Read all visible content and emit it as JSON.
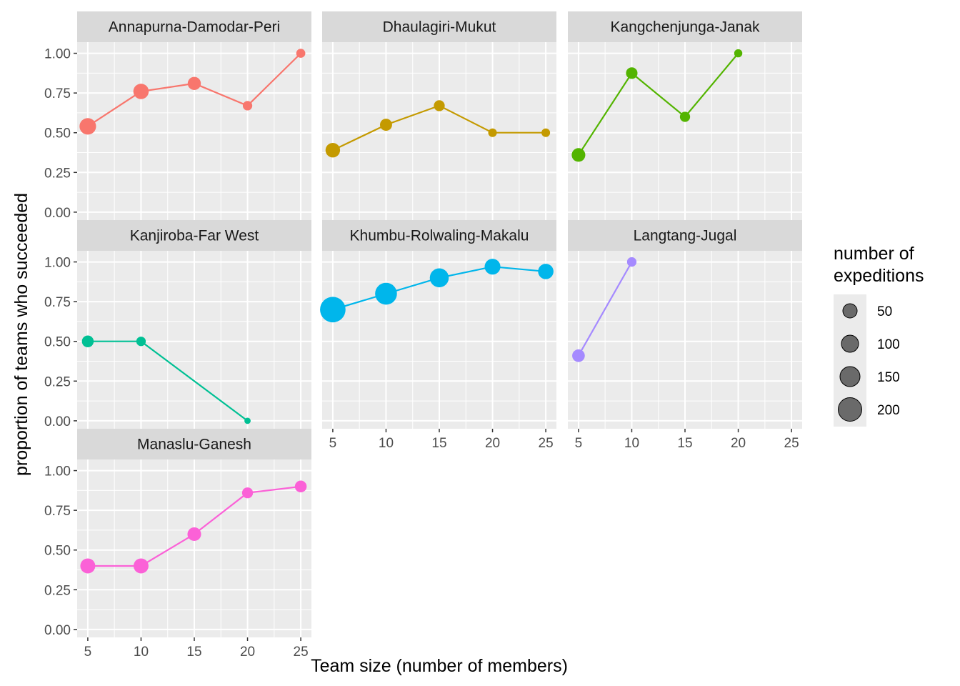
{
  "chart_data": {
    "type": "line",
    "facet_layout": "wrap",
    "xlabel": "Team size (number of members)",
    "ylabel": "proportion of teams who succeeded",
    "x_ticks": [
      5,
      10,
      15,
      20,
      25
    ],
    "y_ticks": [
      "0.00",
      "0.25",
      "0.50",
      "0.75",
      "1.00"
    ],
    "xlim": [
      4,
      26
    ],
    "ylim": [
      -0.05,
      1.07
    ],
    "grid": true,
    "legend": {
      "title_line1": "number of",
      "title_line2": "expeditions",
      "placement": "right",
      "entries": [
        {
          "label": "50",
          "value": 50
        },
        {
          "label": "100",
          "value": 100
        },
        {
          "label": "150",
          "value": 150
        },
        {
          "label": "200",
          "value": 200
        }
      ]
    },
    "panels": [
      {
        "name": "Annapurna-Damodar-Peri",
        "color": "#F8766D",
        "points": [
          {
            "x": 5,
            "y": 0.54,
            "n": 180
          },
          {
            "x": 10,
            "y": 0.76,
            "n": 150
          },
          {
            "x": 15,
            "y": 0.81,
            "n": 100
          },
          {
            "x": 20,
            "y": 0.67,
            "n": 40
          },
          {
            "x": 25,
            "y": 1.0,
            "n": 35
          }
        ]
      },
      {
        "name": "Dhaulagiri-Mukut",
        "color": "#C49A00",
        "points": [
          {
            "x": 5,
            "y": 0.39,
            "n": 130
          },
          {
            "x": 10,
            "y": 0.55,
            "n": 80
          },
          {
            "x": 15,
            "y": 0.67,
            "n": 60
          },
          {
            "x": 20,
            "y": 0.5,
            "n": 30
          },
          {
            "x": 25,
            "y": 0.5,
            "n": 30
          }
        ]
      },
      {
        "name": "Kangchenjunga-Janak",
        "color": "#53B400",
        "points": [
          {
            "x": 5,
            "y": 0.36,
            "n": 110
          },
          {
            "x": 10,
            "y": 0.875,
            "n": 70
          },
          {
            "x": 15,
            "y": 0.6,
            "n": 50
          },
          {
            "x": 20,
            "y": 1.0,
            "n": 25
          }
        ]
      },
      {
        "name": "Kanjiroba-Far West",
        "color": "#00C094",
        "points": [
          {
            "x": 5,
            "y": 0.5,
            "n": 75
          },
          {
            "x": 10,
            "y": 0.5,
            "n": 40
          },
          {
            "x": 20,
            "y": 0.0,
            "n": 10
          }
        ]
      },
      {
        "name": "Khumbu-Rolwaling-Makalu",
        "color": "#00B6EB",
        "points": [
          {
            "x": 5,
            "y": 0.7,
            "n": 500
          },
          {
            "x": 10,
            "y": 0.8,
            "n": 350
          },
          {
            "x": 15,
            "y": 0.9,
            "n": 250
          },
          {
            "x": 20,
            "y": 0.97,
            "n": 160
          },
          {
            "x": 25,
            "y": 0.94,
            "n": 150
          }
        ]
      },
      {
        "name": "Langtang-Jugal",
        "color": "#A58AFF",
        "points": [
          {
            "x": 5,
            "y": 0.41,
            "n": 90
          },
          {
            "x": 10,
            "y": 1.0,
            "n": 40
          }
        ]
      },
      {
        "name": "Manaslu-Ganesh",
        "color": "#FB61D7",
        "points": [
          {
            "x": 5,
            "y": 0.4,
            "n": 140
          },
          {
            "x": 10,
            "y": 0.4,
            "n": 140
          },
          {
            "x": 15,
            "y": 0.6,
            "n": 110
          },
          {
            "x": 20,
            "y": 0.86,
            "n": 60
          },
          {
            "x": 25,
            "y": 0.9,
            "n": 75
          }
        ]
      }
    ]
  }
}
